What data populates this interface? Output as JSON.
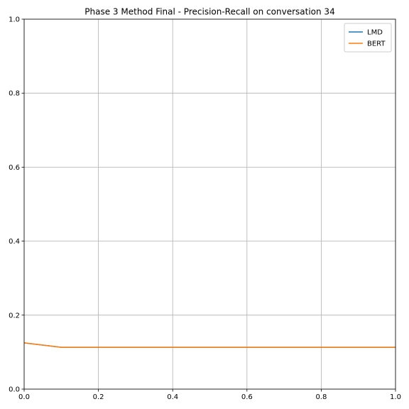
{
  "chart_data": {
    "type": "line",
    "title": "Phase 3 Method Final - Precision-Recall on conversation 34",
    "x": [
      0,
      0.1,
      0.2,
      0.3,
      0.4,
      0.5,
      0.6,
      0.7,
      0.8,
      0.9,
      1.0
    ],
    "series": [
      {
        "name": "LMD",
        "color": "#1f77b4",
        "values": [
          0.125,
          0.113,
          0.113,
          0.113,
          0.113,
          0.113,
          0.113,
          0.113,
          0.113,
          0.113,
          0.113
        ]
      },
      {
        "name": "BERT",
        "color": "#ff7f0e",
        "values": [
          0.125,
          0.113,
          0.113,
          0.113,
          0.113,
          0.113,
          0.113,
          0.113,
          0.113,
          0.113,
          0.113
        ]
      }
    ],
    "xlim": [
      0,
      1
    ],
    "ylim": [
      0,
      1
    ],
    "xticks": [
      {
        "value": 0,
        "label": "0.0"
      },
      0.2,
      0.4,
      0.6,
      0.8,
      {
        "value": 1,
        "label": "1.0"
      }
    ],
    "yticks": [
      {
        "value": 0,
        "label": "0.0"
      },
      0.2,
      0.4,
      0.6,
      0.8,
      {
        "value": 1,
        "label": "1.0"
      }
    ],
    "grid": true,
    "legend": "upper-right"
  }
}
